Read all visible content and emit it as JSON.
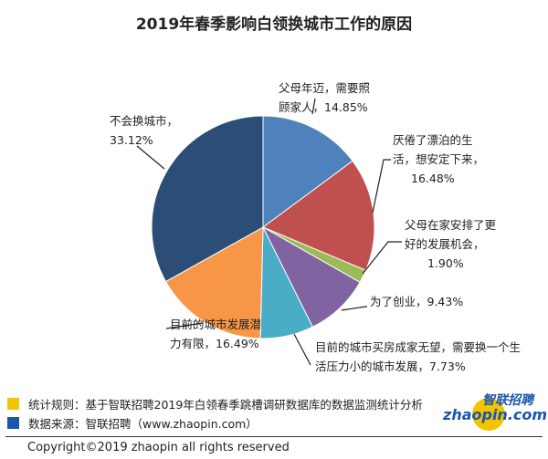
{
  "chart_data": {
    "type": "pie",
    "title": "2019年春季影响白领换城市工作的原因",
    "start": "top",
    "direction": "clockwise",
    "slices": [
      {
        "label": "父母年迈，需要照顾家人，14.85%",
        "lines": [
          "父母年迈，需要照",
          "顾家人，14.85%"
        ],
        "value": 14.85,
        "color": "#4F81BD"
      },
      {
        "label": "厌倦了漂泊的生活，想安定下来，16.48%",
        "lines": [
          "厌倦了漂泊的生",
          "活，想安定下来，",
          "16.48%"
        ],
        "value": 16.48,
        "color": "#C0504D"
      },
      {
        "label": "父母在家安排了更好的发展机会，1.90%",
        "lines": [
          "父母在家安排了更",
          "好的发展机会，",
          "1.90%"
        ],
        "value": 1.9,
        "color": "#9BBB59"
      },
      {
        "label": "为了创业，9.43%",
        "lines": [
          "为了创业，9.43%"
        ],
        "value": 9.43,
        "color": "#8064A2"
      },
      {
        "label": "目前的城市买房成家无望，需要换一个生活压力小的城市发展，7.73%",
        "lines": [
          "目前的城市买房成家无望，需要换一个生",
          "活压力小的城市发展，7.73%"
        ],
        "value": 7.73,
        "color": "#4BACC6"
      },
      {
        "label": "目前的城市发展潜力有限，16.49%",
        "lines": [
          "目前的城市发展潜",
          "力有限，16.49%"
        ],
        "value": 16.49,
        "color": "#F79646"
      },
      {
        "label": "不会换城市，33.12%",
        "lines": [
          "不会换城市，",
          "33.12%"
        ],
        "value": 33.12,
        "color": "#2C4D75"
      }
    ]
  },
  "legend": [
    {
      "text": "统计规则：基于智联招聘2019年白领春季跳槽调研数据库的数据监测统计分析",
      "color": "#F5C400"
    },
    {
      "text": "数据来源：智联招聘（www.zhaopin.com）",
      "color": "#1A56B0"
    }
  ],
  "logo": {
    "cn": "智联招聘",
    "en": "zhaopin.com"
  },
  "copyright": "Copyright©2019 zhaopin all rights reserved"
}
